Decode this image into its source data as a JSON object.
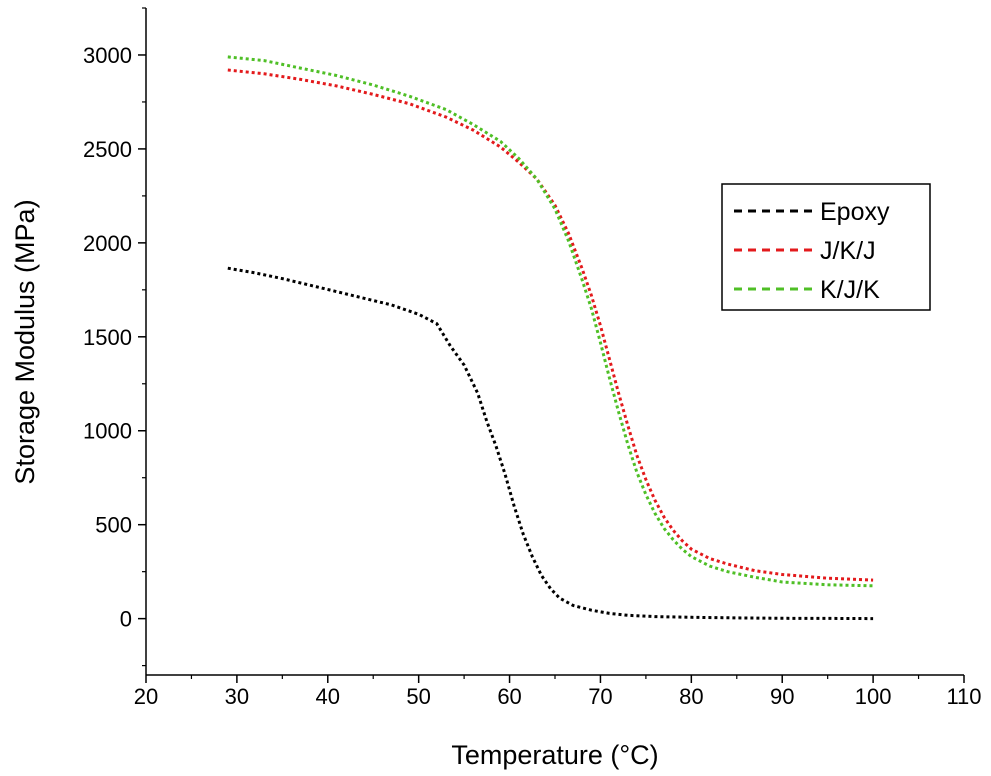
{
  "chart_data": {
    "type": "line",
    "title": "",
    "xlabel": "Temperature (°C)",
    "ylabel": "Storage Modulus (MPa)",
    "xlim": [
      20,
      110
    ],
    "ylim": [
      -300,
      3250
    ],
    "xticks": [
      20,
      30,
      40,
      50,
      60,
      70,
      80,
      90,
      100,
      110
    ],
    "yticks": [
      0,
      500,
      1000,
      1500,
      2000,
      2500,
      3000
    ],
    "grid": false,
    "legend_position": "right",
    "series": [
      {
        "name": "Epoxy",
        "color": "#000000",
        "x": [
          29,
          32,
          35,
          38,
          41,
          44,
          47,
          50,
          52,
          53.5,
          55,
          56.5,
          57.5,
          58.5,
          59.5,
          60.5,
          61.5,
          62.5,
          63.5,
          64.5,
          65.5,
          67,
          69,
          71,
          73,
          76,
          80,
          85,
          90,
          95,
          100
        ],
        "y": [
          1865,
          1840,
          1810,
          1775,
          1740,
          1705,
          1670,
          1620,
          1570,
          1450,
          1350,
          1200,
          1050,
          920,
          770,
          600,
          450,
          330,
          230,
          160,
          110,
          70,
          45,
          28,
          18,
          11,
          7,
          4,
          2,
          1,
          0
        ]
      },
      {
        "name": "J/K/J",
        "color": "#e31a1c",
        "x": [
          29,
          33,
          37,
          41,
          45,
          49,
          53,
          56,
          59,
          61,
          63,
          65,
          66.5,
          68,
          69,
          70,
          71,
          72,
          73,
          74,
          75,
          76,
          77,
          78,
          79,
          80,
          82,
          84,
          87,
          90,
          95,
          100
        ],
        "y": [
          2920,
          2900,
          2870,
          2835,
          2790,
          2740,
          2670,
          2600,
          2510,
          2430,
          2340,
          2200,
          2050,
          1860,
          1720,
          1560,
          1380,
          1200,
          1030,
          870,
          740,
          630,
          540,
          470,
          415,
          370,
          320,
          290,
          255,
          235,
          215,
          205
        ]
      },
      {
        "name": "K/J/K",
        "color": "#4fbf26",
        "x": [
          29,
          33,
          37,
          41,
          45,
          49,
          53,
          56,
          59,
          61,
          63,
          65,
          66.5,
          68,
          69,
          70,
          71,
          72,
          73,
          74,
          75,
          76,
          77,
          78,
          79,
          80,
          82,
          84,
          87,
          90,
          95,
          100
        ],
        "y": [
          2990,
          2970,
          2930,
          2890,
          2840,
          2780,
          2710,
          2630,
          2540,
          2450,
          2340,
          2180,
          2010,
          1800,
          1650,
          1470,
          1280,
          1100,
          930,
          780,
          660,
          560,
          480,
          420,
          370,
          330,
          280,
          250,
          220,
          195,
          180,
          175
        ]
      }
    ]
  }
}
